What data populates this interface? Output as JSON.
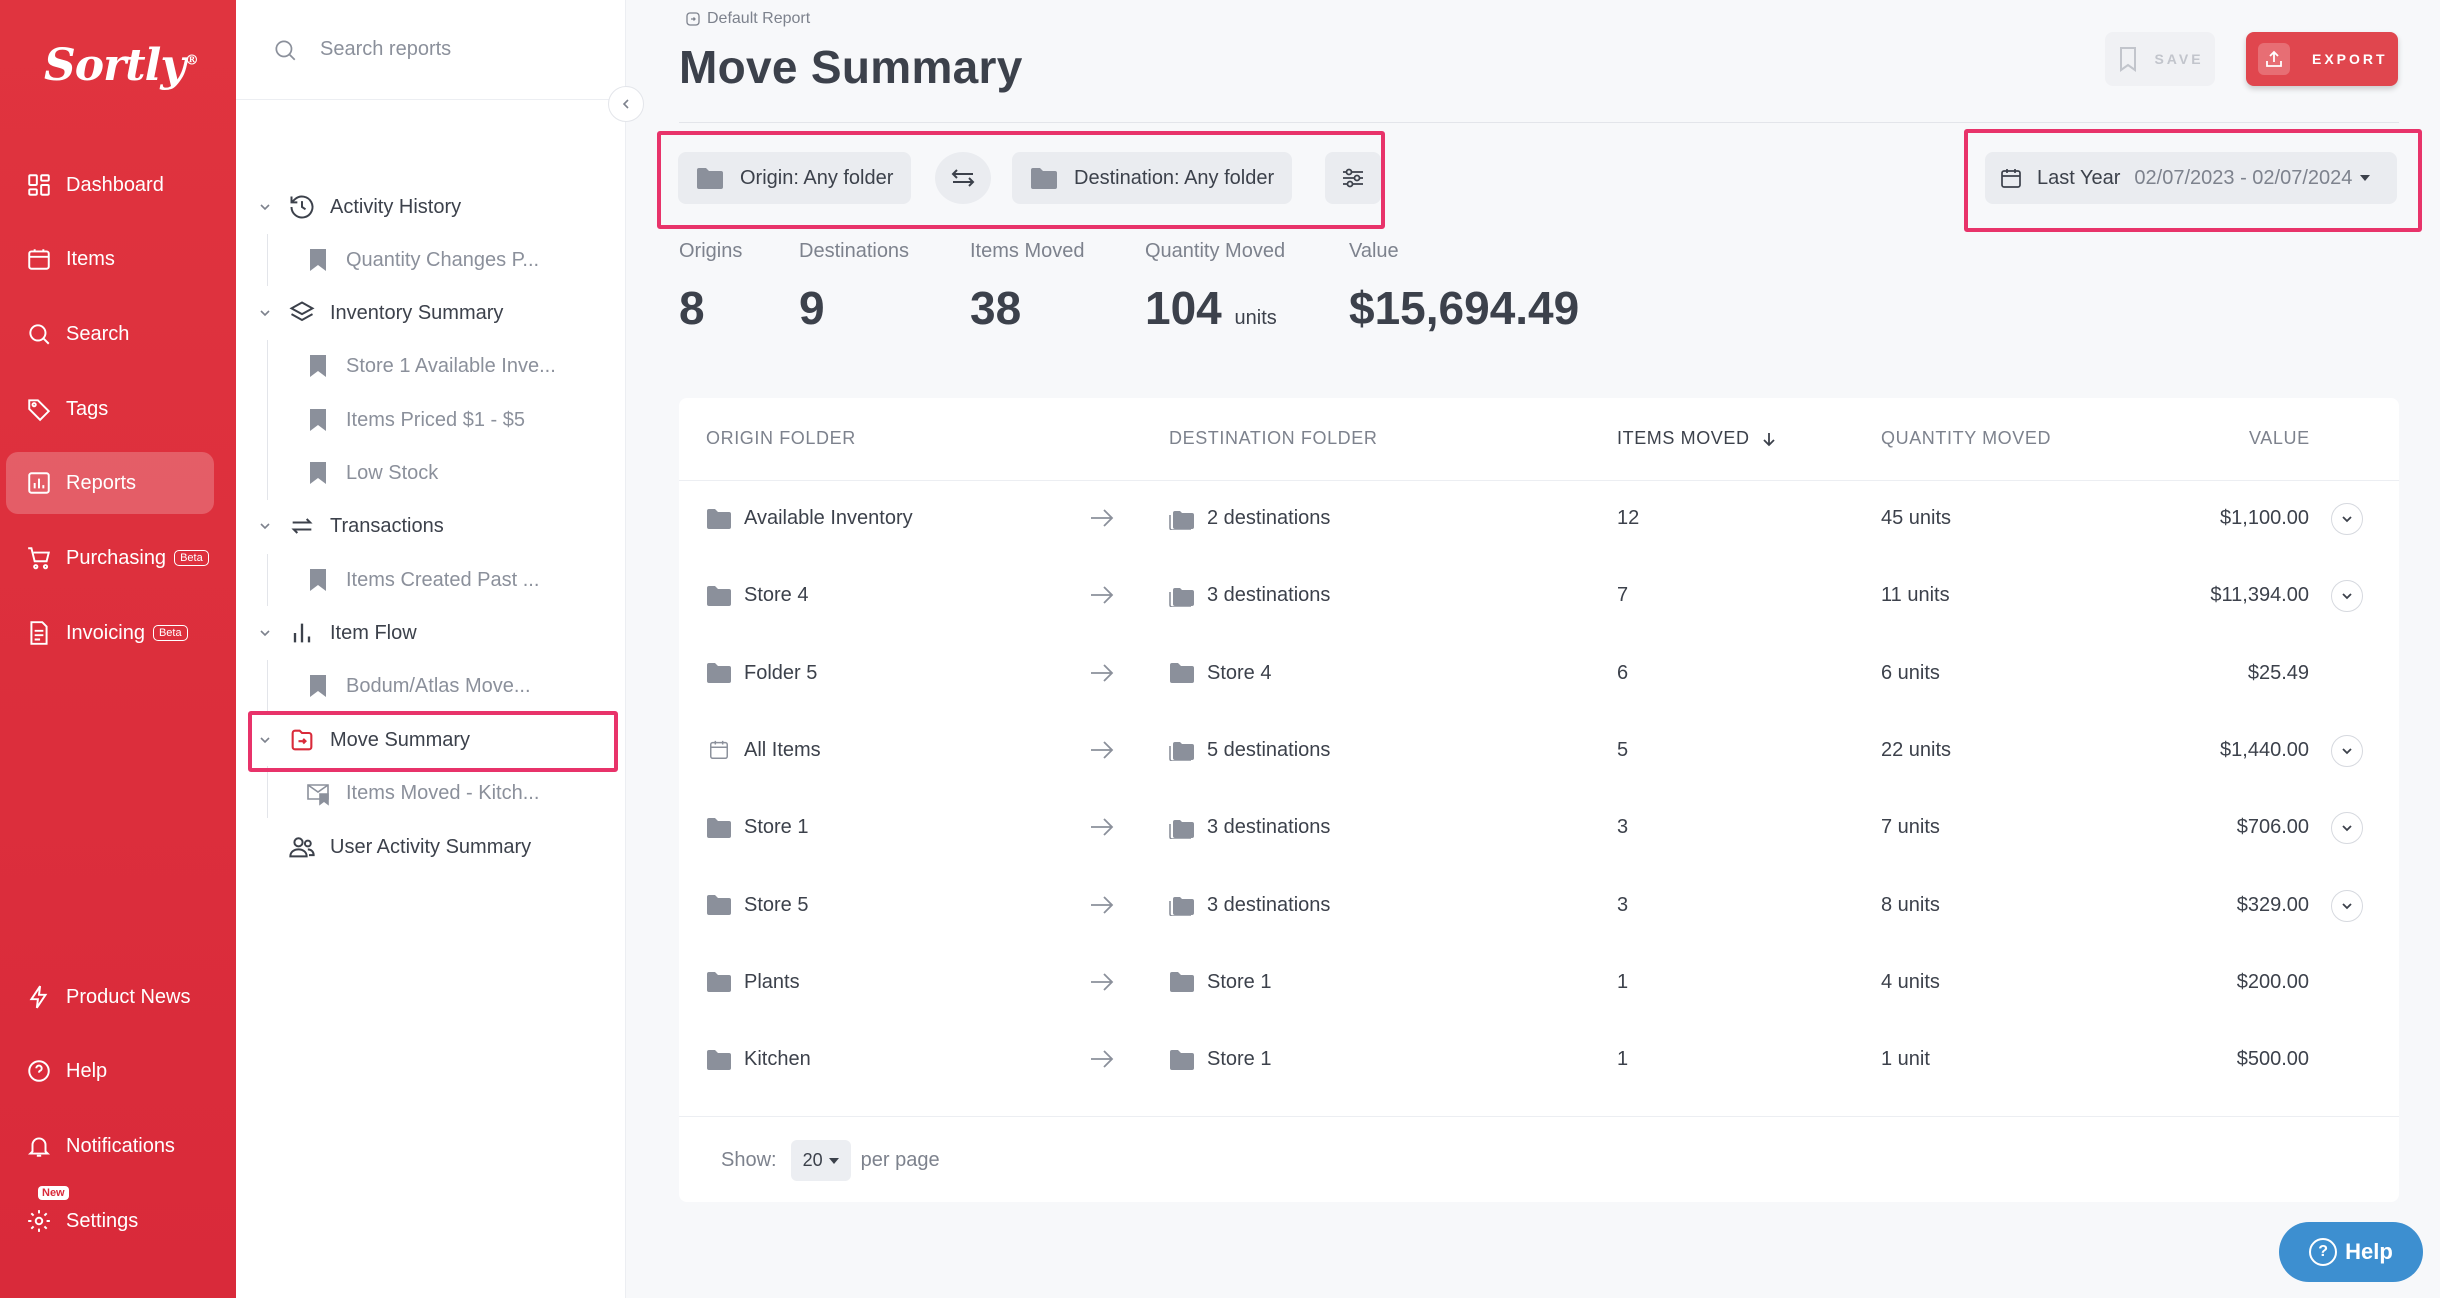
{
  "brand": {
    "logo_text": "Sortly",
    "accent": "#d92a3a",
    "highlight": "#e8336a"
  },
  "nav": {
    "items": [
      {
        "label": "Dashboard",
        "icon": "dashboard-icon"
      },
      {
        "label": "Items",
        "icon": "items-icon"
      },
      {
        "label": "Search",
        "icon": "search-icon"
      },
      {
        "label": "Tags",
        "icon": "tag-icon"
      },
      {
        "label": "Reports",
        "icon": "reports-icon",
        "active": true
      },
      {
        "label": "Purchasing",
        "icon": "cart-icon",
        "badge": "Beta"
      },
      {
        "label": "Invoicing",
        "icon": "invoice-icon",
        "badge": "Beta"
      }
    ],
    "bottom": [
      {
        "label": "Product News",
        "icon": "lightning-icon"
      },
      {
        "label": "Help",
        "icon": "help-icon"
      },
      {
        "label": "Notifications",
        "icon": "bell-icon"
      },
      {
        "label": "Settings",
        "icon": "gear-icon",
        "badge": "New"
      }
    ]
  },
  "reports": {
    "search_placeholder": "Search reports",
    "tree": [
      {
        "label": "Activity History",
        "icon": "history-icon",
        "children": [
          "Quantity Changes P..."
        ]
      },
      {
        "label": "Inventory Summary",
        "icon": "layers-icon",
        "children": [
          "Store 1 Available Inve...",
          "Items Priced $1 - $5",
          "Low Stock"
        ]
      },
      {
        "label": "Transactions",
        "icon": "transactions-icon",
        "children": [
          "Items Created Past ..."
        ]
      },
      {
        "label": "Item Flow",
        "icon": "bar-chart-icon",
        "children": [
          "Bodum/Atlas Move..."
        ]
      },
      {
        "label": "Move Summary",
        "icon": "move-icon",
        "selected": true,
        "children": [
          "Items Moved - Kitch..."
        ]
      },
      {
        "label": "User Activity Summary",
        "icon": "users-icon",
        "children": []
      }
    ]
  },
  "header": {
    "breadcrumb": "Default Report",
    "title": "Move Summary",
    "save_label": "SAVE",
    "export_label": "EXPORT"
  },
  "filters": {
    "origin": "Origin: Any folder",
    "destination": "Destination: Any folder",
    "date_preset": "Last Year",
    "date_range": "02/07/2023 - 02/07/2024"
  },
  "stats": [
    {
      "label": "Origins",
      "value": "8"
    },
    {
      "label": "Destinations",
      "value": "9"
    },
    {
      "label": "Items Moved",
      "value": "38"
    },
    {
      "label": "Quantity Moved",
      "value": "104",
      "unit": "units"
    },
    {
      "label": "Value",
      "value": "$15,694.49"
    }
  ],
  "table": {
    "columns": [
      "ORIGIN FOLDER",
      "DESTINATION FOLDER",
      "ITEMS MOVED",
      "QUANTITY MOVED",
      "VALUE"
    ],
    "sorted_column": "ITEMS MOVED",
    "rows": [
      {
        "origin": "Available Inventory",
        "origin_icon": "folder-icon",
        "destination": "2 destinations",
        "multi": true,
        "items": "12",
        "quantity": "45 units",
        "value": "$1,100.00",
        "expandable": true
      },
      {
        "origin": "Store 4",
        "origin_icon": "folder-icon",
        "destination": "3 destinations",
        "multi": true,
        "items": "7",
        "quantity": "11 units",
        "value": "$11,394.00",
        "expandable": true
      },
      {
        "origin": "Folder 5",
        "origin_icon": "folder-icon",
        "destination": "Store 4",
        "multi": false,
        "items": "6",
        "quantity": "6 units",
        "value": "$25.49",
        "expandable": false
      },
      {
        "origin": "All Items",
        "origin_icon": "calendar-icon",
        "destination": "5 destinations",
        "multi": true,
        "items": "5",
        "quantity": "22 units",
        "value": "$1,440.00",
        "expandable": true
      },
      {
        "origin": "Store 1",
        "origin_icon": "folder-icon",
        "destination": "3 destinations",
        "multi": true,
        "items": "3",
        "quantity": "7 units",
        "value": "$706.00",
        "expandable": true
      },
      {
        "origin": "Store 5",
        "origin_icon": "folder-icon",
        "destination": "3 destinations",
        "multi": true,
        "items": "3",
        "quantity": "8 units",
        "value": "$329.00",
        "expandable": true
      },
      {
        "origin": "Plants",
        "origin_icon": "folder-icon",
        "destination": "Store 1",
        "multi": false,
        "items": "1",
        "quantity": "4 units",
        "value": "$200.00",
        "expandable": false
      },
      {
        "origin": "Kitchen",
        "origin_icon": "folder-icon",
        "destination": "Store 1",
        "multi": false,
        "items": "1",
        "quantity": "1 unit",
        "value": "$500.00",
        "expandable": false
      }
    ],
    "footer": {
      "show_label": "Show:",
      "per_page_value": "20",
      "per_page_label": "per page"
    }
  },
  "help_button": "Help"
}
